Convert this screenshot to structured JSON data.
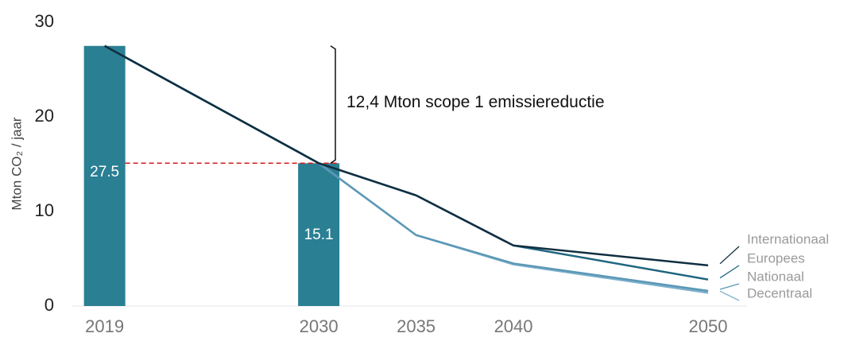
{
  "chart_data": {
    "type": "line",
    "y_label": "Mton CO₂ / jaar",
    "annotation": "12,4 Mton scope 1 emissiereductie",
    "x": [
      2019,
      2030,
      2035,
      2040,
      2050
    ],
    "xlim": [
      2017.3,
      2052
    ],
    "xticks": [
      2019,
      2030,
      2035,
      2040,
      2050
    ],
    "ylim": [
      0,
      30
    ],
    "yticks": [
      0,
      10,
      20,
      30
    ],
    "bars": {
      "x": [
        2019,
        2030
      ],
      "values": [
        27.5,
        15.1
      ],
      "color": "#2a7f93"
    },
    "reference_line": {
      "value": 15.1,
      "color": "#d62020"
    },
    "series": [
      {
        "name": "Internationaal",
        "color": "#0f2f40",
        "values": [
          27.5,
          15.1,
          11.7,
          6.4,
          4.3
        ]
      },
      {
        "name": "Europees",
        "color": "#1e6580",
        "values": [
          27.5,
          15.1,
          11.7,
          6.4,
          2.8
        ]
      },
      {
        "name": "Nationaal",
        "color": "#5c98b6",
        "values": [
          27.5,
          15.1,
          7.5,
          4.5,
          1.6
        ]
      },
      {
        "name": "Decentraal",
        "color": "#7eb0cc",
        "values": [
          27.5,
          15.1,
          7.5,
          4.4,
          1.4
        ]
      }
    ]
  }
}
